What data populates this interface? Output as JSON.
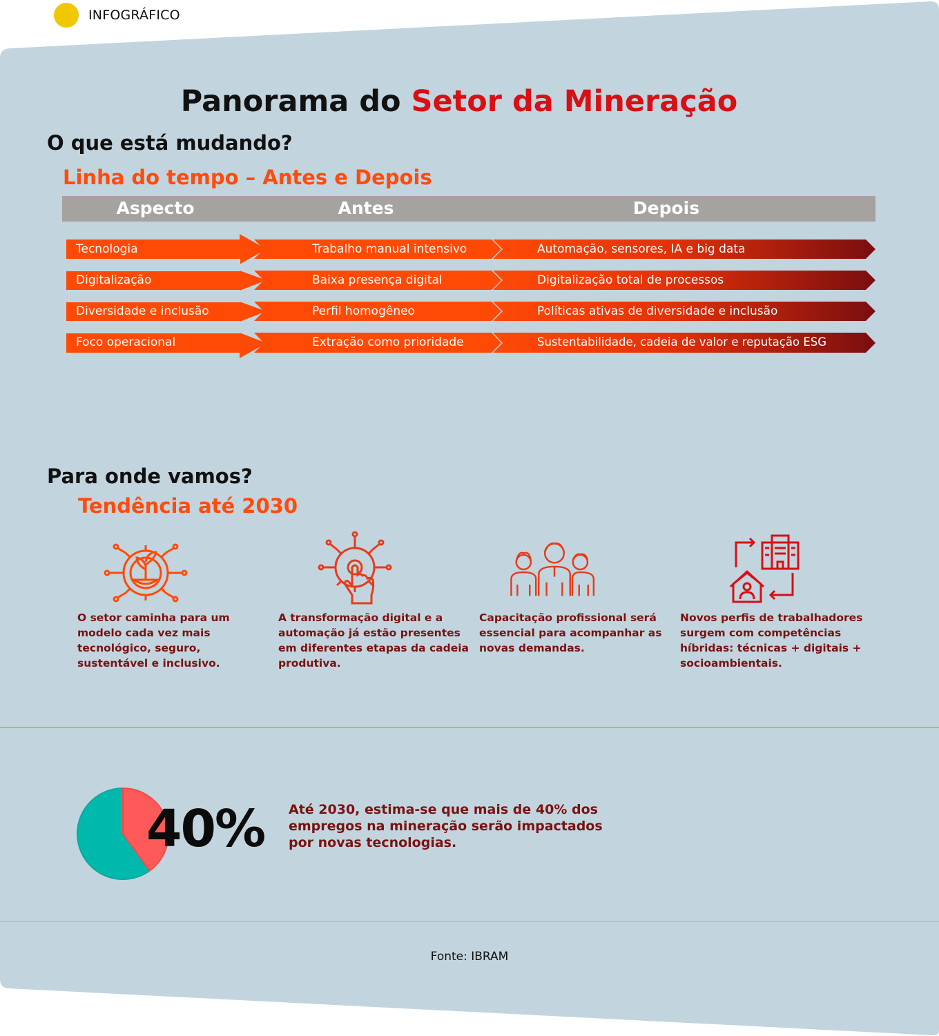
{
  "kicker": {
    "label": "INFOGRÁFICO"
  },
  "title": {
    "part1": "Panorama do ",
    "part2": "Setor da Mineração"
  },
  "section1": {
    "heading": "O que está mudando?",
    "subheading": "Linha do tempo – Antes e Depois",
    "columns": [
      "Aspecto",
      "Antes",
      "Depois"
    ],
    "rows": [
      {
        "aspect": "Tecnologia",
        "before": "Trabalho manual intensivo",
        "after": "Automação, sensores, IA e big data"
      },
      {
        "aspect": "Digitalização",
        "before": "Baixa presença digital",
        "after": "Digitalização total de processos"
      },
      {
        "aspect": "Diversidade e inclusão",
        "before": "Perfil homogêneo",
        "after": "Políticas ativas de diversidade e inclusão"
      },
      {
        "aspect": "Foco operacional",
        "before": "Extração como prioridade",
        "after": "Sustentabilidade, cadeia de valor e reputação ESG"
      }
    ]
  },
  "section2": {
    "heading": "Para onde vamos?",
    "subheading": "Tendência até 2030",
    "trends": [
      {
        "icon": "gear-sprout-icon",
        "text": "O setor caminha para um modelo cada vez mais tecnológico, seguro, sustentável e inclusivo."
      },
      {
        "icon": "gear-touch-icon",
        "text": "A transformação digital e a automação já estão presentes em diferentes etapas da cadeia produtiva."
      },
      {
        "icon": "people-group-icon",
        "text": "Capacitação profissional será essencial para acompanhar as novas demandas."
      },
      {
        "icon": "home-office-exchange-icon",
        "text": "Novos perfis de trabalhadores surgem com competências híbridas: técnicas + digitais + socioambientais."
      }
    ]
  },
  "stat": {
    "value": "40%",
    "fraction": 0.4,
    "text": "Até 2030, estima-se que mais de 40% dos empregos na mineração serão impactados por novas tecnologias."
  },
  "source": {
    "text": "Fonte: IBRAM"
  },
  "colors": {
    "panel": "#c2d5de",
    "accent_red": "#d80f14",
    "accent_orange": "#ff4b0d",
    "dark_red": "#7a1212",
    "header_gray": "#a6a29f",
    "pie_teal": "#00b9ad",
    "pie_coral": "#ff5a5a"
  }
}
